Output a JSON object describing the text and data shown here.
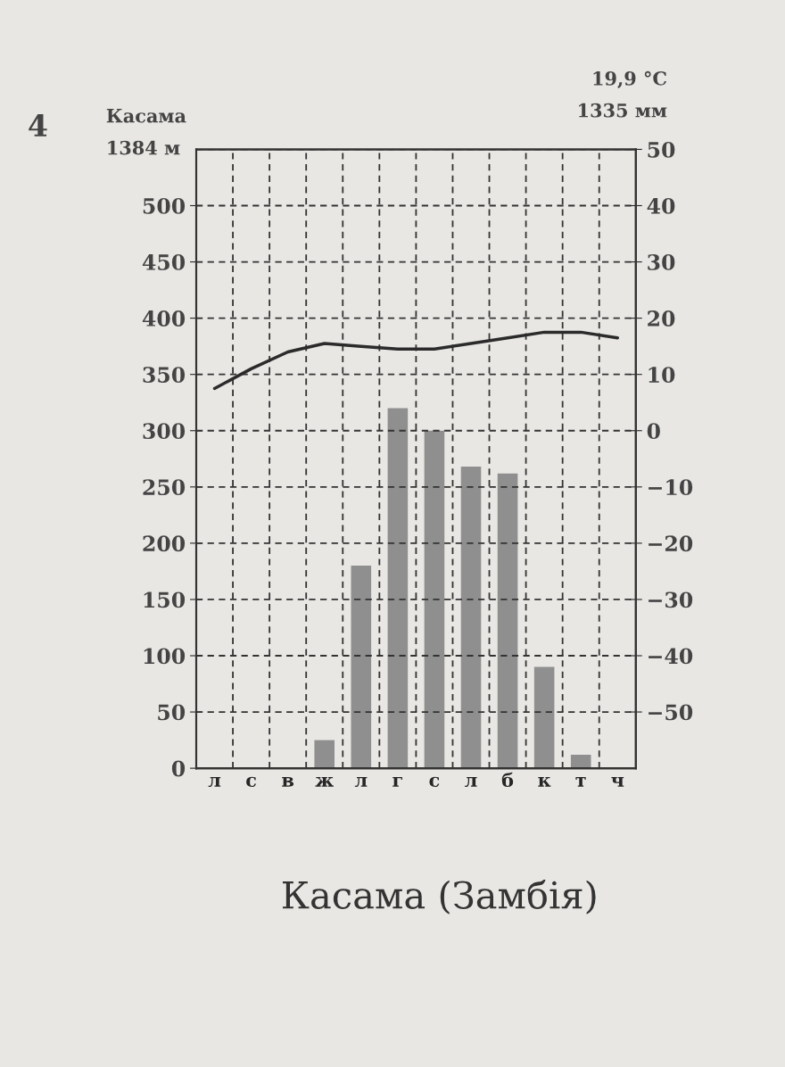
{
  "chart_data": {
    "type": "bar",
    "title": "Касама (Замбія)",
    "categories": [
      "л",
      "с",
      "в",
      "ж",
      "л",
      "г",
      "с",
      "л",
      "б",
      "к",
      "т",
      "ч"
    ],
    "series": [
      {
        "color": "#8f8f8f",
        "values": [
          0,
          0,
          0,
          25,
          180,
          320,
          300,
          268,
          262,
          90,
          12,
          0
        ]
      },
      {
        "type": "line",
        "axis": "y2",
        "color": "#2b2b2b",
        "values": [
          7.5,
          11,
          14,
          15.5,
          15,
          14.5,
          14.5,
          15.5,
          16.5,
          17.5,
          17.5,
          16.5
        ]
      }
    ],
    "ylim": [
      0,
      550
    ],
    "yticks": [
      0,
      50,
      100,
      150,
      200,
      250,
      300,
      350,
      400,
      450,
      500
    ],
    "y2lim": [
      -60,
      50
    ],
    "y2ticks": [
      -50,
      -40,
      -30,
      -20,
      -10,
      0,
      10,
      20,
      30,
      40,
      50
    ],
    "grid": true,
    "marker": "none",
    "line_style": "solid",
    "annotations": [
      "4",
      "Касама",
      "1384 м",
      "19,9 °C",
      "1335 мм"
    ]
  }
}
